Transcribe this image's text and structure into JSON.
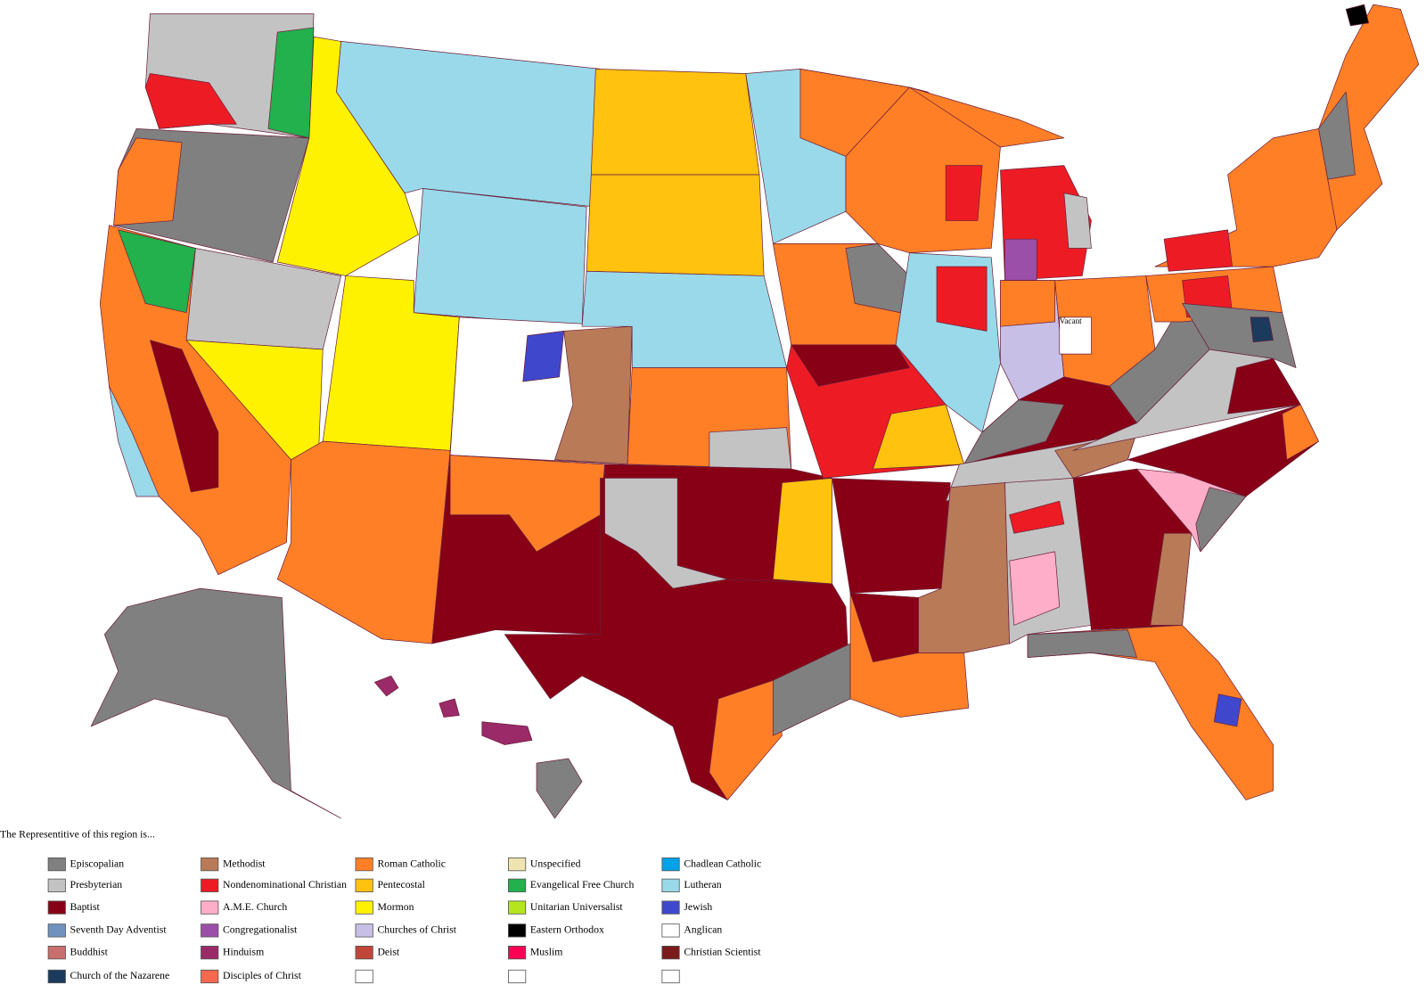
{
  "map_labels": [
    "Vacant"
  ],
  "legend": {
    "title": "The Representitive of this region is...",
    "columns": [
      [
        {
          "label": "Episcopalian",
          "color": "#808080"
        },
        {
          "label": "Presbyterian",
          "color": "#c3c3c3"
        },
        {
          "label": "Baptist",
          "color": "#880015"
        },
        {
          "label": "Seventh Day Adventist",
          "color": "#7092be"
        },
        {
          "label": "Buddhist",
          "color": "#c86e6e"
        },
        {
          "label": "Church of the Nazarene",
          "color": "#1b3a5c"
        }
      ],
      [
        {
          "label": "Methodist",
          "color": "#b97a57"
        },
        {
          "label": "Nondenominational Christian",
          "color": "#ed1c24"
        },
        {
          "label": "A.M.E. Church",
          "color": "#ffaec9"
        },
        {
          "label": "Congregationalist",
          "color": "#9c4fa8"
        },
        {
          "label": "Hinduism",
          "color": "#9b2a68"
        },
        {
          "label": "Disciples of Christ",
          "color": "#f5694f"
        }
      ],
      [
        {
          "label": "Roman Catholic",
          "color": "#ff7f27"
        },
        {
          "label": "Pentecostal",
          "color": "#ffc20e"
        },
        {
          "label": "Mormon",
          "color": "#fff200"
        },
        {
          "label": "Churches of Christ",
          "color": "#c8bfe7"
        },
        {
          "label": "Deist",
          "color": "#c0463a"
        }
      ],
      [
        {
          "label": "Unspecified",
          "color": "#efe4b0"
        },
        {
          "label": "Evangelical Free Church",
          "color": "#22b14c"
        },
        {
          "label": "Unitarian Universalist",
          "color": "#b5e61d"
        },
        {
          "label": "Eastern Orthodox",
          "color": "#000000"
        },
        {
          "label": "Muslim",
          "color": "#ff0055"
        }
      ],
      [
        {
          "label": "Chadlean Catholic",
          "color": "#00a2e8"
        },
        {
          "label": "Lutheran",
          "color": "#99d9ea"
        },
        {
          "label": "Jewish",
          "color": "#3f48cc"
        },
        {
          "label": "Anglican",
          "color": "#ffffff"
        },
        {
          "label": "Christian Scientist",
          "color": "#7a1a1a"
        }
      ]
    ]
  }
}
